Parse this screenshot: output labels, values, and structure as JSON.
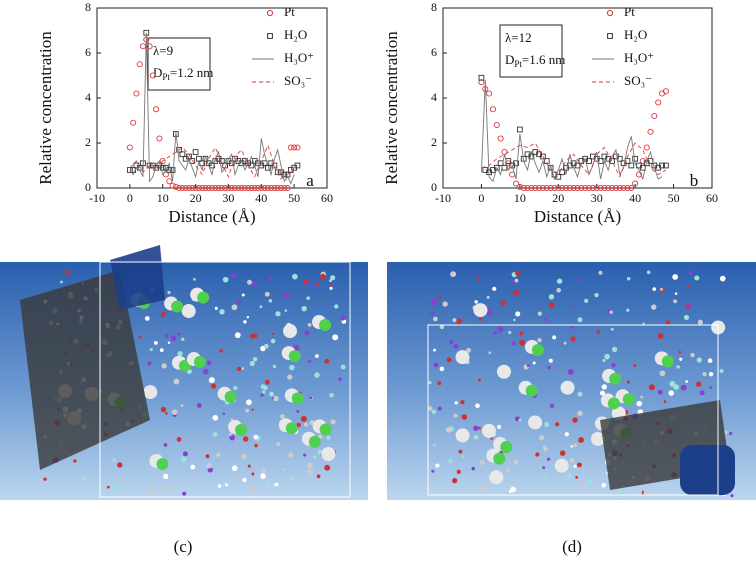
{
  "chart_data": [
    {
      "type": "scatter-line",
      "panel_label": "a",
      "xlabel": "Distance (Å)",
      "ylabel": "Relative concentration",
      "xlim": [
        -10,
        60
      ],
      "xticks": [
        -10,
        0,
        10,
        20,
        30,
        40,
        50,
        60
      ],
      "ylim": [
        0,
        8
      ],
      "yticks": [
        0,
        2,
        4,
        6,
        8
      ],
      "legend": "upper right",
      "annotation": [
        [
          "λ=9"
        ],
        [
          "D",
          "Pt",
          "=1.2 nm"
        ]
      ],
      "series": [
        {
          "name": "Pt",
          "color": "#e0383a",
          "marker": "circle",
          "x": [
            0,
            1,
            2,
            3,
            4,
            5,
            6,
            7,
            8,
            9,
            10,
            11,
            12,
            13,
            14,
            15,
            16,
            17,
            18,
            19,
            20,
            21,
            22,
            23,
            24,
            25,
            26,
            27,
            28,
            29,
            30,
            31,
            32,
            33,
            34,
            35,
            36,
            37,
            38,
            39,
            40,
            41,
            42,
            43,
            44,
            45,
            46,
            47,
            48,
            49,
            50,
            51
          ],
          "values": [
            1.8,
            2.9,
            4.2,
            5.5,
            6.3,
            6.6,
            6.3,
            5.0,
            3.5,
            2.2,
            1.2,
            0.6,
            0.3,
            0.1,
            0.05,
            0,
            0,
            0,
            0,
            0,
            0,
            0,
            0,
            0,
            0,
            0,
            0,
            0,
            0,
            0,
            0,
            0,
            0,
            0,
            0,
            0,
            0,
            0,
            0,
            0,
            0,
            0,
            0,
            0,
            0,
            0,
            0,
            0,
            0,
            1.8,
            1.8,
            1.8
          ]
        },
        {
          "name": "H₂O",
          "color": "#333333",
          "marker": "square",
          "x": [
            0,
            1,
            2,
            3,
            4,
            5,
            6,
            7,
            8,
            9,
            10,
            11,
            12,
            13,
            14,
            15,
            16,
            17,
            18,
            19,
            20,
            21,
            22,
            23,
            24,
            25,
            26,
            27,
            28,
            29,
            30,
            31,
            32,
            33,
            34,
            35,
            36,
            37,
            38,
            39,
            40,
            41,
            42,
            43,
            44,
            45,
            46,
            47,
            48,
            49,
            50,
            51
          ],
          "values": [
            0.8,
            0.8,
            1.0,
            0.9,
            1.1,
            6.9,
            1.0,
            1.0,
            0.9,
            1.0,
            0.9,
            0.9,
            0.8,
            0.8,
            2.4,
            1.7,
            1.5,
            1.3,
            1.4,
            1.2,
            1.6,
            1.3,
            1.1,
            1.3,
            1.1,
            1.0,
            1.2,
            1.3,
            1.2,
            1.0,
            1.2,
            1.1,
            1.3,
            1.2,
            1.1,
            1.2,
            1.1,
            1.0,
            1.2,
            1.1,
            1.0,
            1.1,
            0.9,
            1.1,
            1.0,
            0.7,
            0.7,
            0.6,
            0.6,
            0.8,
            0.9,
            1.0
          ]
        },
        {
          "name": "H₃O⁺",
          "color": "#777777",
          "linestyle": "solid",
          "x": [
            0,
            1,
            2,
            3,
            4,
            5,
            6,
            7,
            8,
            9,
            10,
            11,
            12,
            13,
            14,
            15,
            16,
            17,
            18,
            19,
            20,
            21,
            22,
            23,
            24,
            25,
            26,
            27,
            28,
            29,
            30,
            31,
            32,
            33,
            34,
            35,
            36,
            37,
            38,
            39,
            40,
            41,
            42,
            43,
            44,
            45,
            46,
            47,
            48,
            49,
            50
          ],
          "values": [
            0.8,
            0.6,
            0.9,
            0.8,
            0.5,
            6.9,
            0.3,
            0.5,
            1.0,
            1.2,
            0.6,
            0.8,
            1.1,
            0.3,
            2.5,
            1.2,
            1.0,
            0.8,
            1.3,
            0.9,
            0.5,
            1.2,
            0.8,
            1.4,
            1.0,
            0.6,
            1.3,
            1.6,
            0.7,
            0.9,
            1.3,
            1.5,
            0.6,
            1.0,
            1.2,
            0.8,
            1.1,
            1.4,
            1.0,
            0.5,
            2.2,
            1.5,
            1.0,
            0.6,
            1.3,
            1.7,
            1.0,
            0.3,
            0.5,
            0.2,
            0.6
          ]
        },
        {
          "name": "SO₃⁻",
          "color": "#e0383a",
          "linestyle": "dashed",
          "x": [
            0,
            2,
            4,
            6,
            8,
            10,
            12,
            14,
            16,
            18,
            20,
            22,
            24,
            26,
            28,
            30,
            32,
            34,
            36,
            38,
            40,
            42,
            44,
            46,
            48,
            50
          ],
          "values": [
            0.9,
            1.2,
            0.7,
            1.0,
            0.8,
            1.2,
            1.4,
            1.6,
            1.8,
            1.5,
            1.0,
            0.6,
            1.3,
            1.8,
            1.1,
            0.5,
            1.4,
            1.7,
            1.0,
            0.5,
            1.2,
            1.9,
            1.0,
            0.4,
            0.6,
            0.8
          ]
        }
      ]
    },
    {
      "type": "scatter-line",
      "panel_label": "b",
      "xlabel": "Distance (Å)",
      "ylabel": "Relative concentration",
      "xlim": [
        -10,
        60
      ],
      "xticks": [
        -10,
        0,
        10,
        20,
        30,
        40,
        50,
        60
      ],
      "ylim": [
        0,
        8
      ],
      "yticks": [
        0,
        2,
        4,
        6,
        8
      ],
      "legend": "upper right",
      "annotation": [
        [
          "λ=12"
        ],
        [
          "D",
          "Pt",
          "=1.6 nm"
        ]
      ],
      "series": [
        {
          "name": "Pt",
          "color": "#e0383a",
          "marker": "circle",
          "x": [
            0,
            1,
            2,
            3,
            4,
            5,
            6,
            7,
            8,
            9,
            10,
            11,
            12,
            13,
            14,
            15,
            16,
            17,
            18,
            19,
            20,
            21,
            22,
            23,
            24,
            25,
            26,
            27,
            28,
            29,
            30,
            31,
            32,
            33,
            34,
            35,
            36,
            37,
            38,
            39,
            40,
            41,
            42,
            43,
            44,
            45,
            46,
            47,
            48
          ],
          "values": [
            4.7,
            4.4,
            4.2,
            3.5,
            2.8,
            2.2,
            1.6,
            1.1,
            0.6,
            0.2,
            0.05,
            0,
            0,
            0,
            0,
            0,
            0,
            0,
            0,
            0,
            0,
            0,
            0,
            0,
            0,
            0,
            0,
            0,
            0,
            0,
            0,
            0,
            0,
            0,
            0,
            0,
            0,
            0,
            0,
            0,
            0.2,
            0.6,
            1.2,
            1.8,
            2.5,
            3.2,
            3.8,
            4.2,
            4.3
          ]
        },
        {
          "name": "H₂O",
          "color": "#333333",
          "marker": "square",
          "x": [
            0,
            1,
            2,
            3,
            4,
            5,
            6,
            7,
            8,
            9,
            10,
            11,
            12,
            13,
            14,
            15,
            16,
            17,
            18,
            19,
            20,
            21,
            22,
            23,
            24,
            25,
            26,
            27,
            28,
            29,
            30,
            31,
            32,
            33,
            34,
            35,
            36,
            37,
            38,
            39,
            40,
            41,
            42,
            43,
            44,
            45,
            46,
            47,
            48
          ],
          "values": [
            4.9,
            0.8,
            0.7,
            0.8,
            0.9,
            1.1,
            0.9,
            1.2,
            1.0,
            1.1,
            2.6,
            1.3,
            1.5,
            1.4,
            1.6,
            1.5,
            1.4,
            1.2,
            0.9,
            0.6,
            0.5,
            0.7,
            0.9,
            1.0,
            1.1,
            1.0,
            1.2,
            1.3,
            1.2,
            1.4,
            1.3,
            1.2,
            1.4,
            1.3,
            1.2,
            1.4,
            1.3,
            1.1,
            1.2,
            1.0,
            1.3,
            1.0,
            0.9,
            1.1,
            1.2,
            1.0,
            0.9,
            1.0,
            1.0
          ]
        },
        {
          "name": "H₃O⁺",
          "color": "#777777",
          "linestyle": "solid",
          "x": [
            0,
            1,
            2,
            3,
            4,
            5,
            6,
            7,
            8,
            9,
            10,
            11,
            12,
            13,
            14,
            15,
            16,
            17,
            18,
            19,
            20,
            21,
            22,
            23,
            24,
            25,
            26,
            27,
            28,
            29,
            30,
            31,
            32,
            33,
            34,
            35,
            36,
            37,
            38,
            39,
            40,
            41,
            42,
            43,
            44,
            45,
            46,
            47
          ],
          "values": [
            0.7,
            4.8,
            0.5,
            0.3,
            0.9,
            0.6,
            1.5,
            0.8,
            1.0,
            0.4,
            2.4,
            1.2,
            0.8,
            1.6,
            1.1,
            0.7,
            1.2,
            0.5,
            1.0,
            0.4,
            0.8,
            1.3,
            0.6,
            1.5,
            0.9,
            0.5,
            1.1,
            1.3,
            0.6,
            1.0,
            1.6,
            0.4,
            1.2,
            0.8,
            1.4,
            1.7,
            0.6,
            0.9,
            1.8,
            2.3,
            1.1,
            0.8,
            0.4,
            1.2,
            1.6,
            0.9,
            0.4,
            0.5
          ]
        },
        {
          "name": "SO₃⁻",
          "color": "#e0383a",
          "linestyle": "dashed",
          "x": [
            0,
            2,
            4,
            6,
            8,
            10,
            12,
            14,
            16,
            18,
            20,
            22,
            24,
            26,
            28,
            30,
            32,
            34,
            36,
            38,
            40,
            42,
            44,
            46,
            48
          ],
          "values": [
            0.9,
            1.0,
            1.3,
            1.5,
            1.7,
            1.9,
            1.8,
            2.0,
            1.4,
            0.8,
            0.6,
            1.2,
            1.5,
            1.0,
            0.6,
            1.5,
            1.8,
            1.2,
            0.5,
            1.4,
            2.0,
            1.7,
            0.9,
            0.6,
            0.8
          ]
        }
      ]
    }
  ],
  "panels": [
    {
      "label": "(c)"
    },
    {
      "label": "(d)"
    }
  ]
}
